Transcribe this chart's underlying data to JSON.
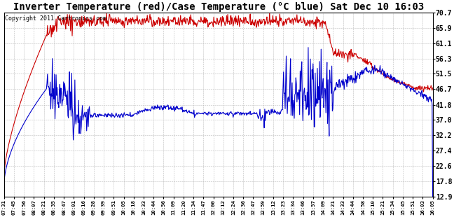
{
  "title": "Inverter Temperature (red)/Case Temperature (°C blue) Sat Dec 10 16:03",
  "copyright": "Copyright 2011 Cartronics.com",
  "yticks": [
    12.9,
    17.8,
    22.6,
    27.4,
    32.2,
    37.0,
    41.8,
    46.7,
    51.5,
    56.3,
    61.1,
    65.9,
    70.7
  ],
  "ymin": 12.9,
  "ymax": 70.7,
  "xtick_labels": [
    "07:31",
    "07:45",
    "07:56",
    "08:07",
    "08:21",
    "08:35",
    "08:47",
    "09:01",
    "09:16",
    "09:28",
    "09:39",
    "09:51",
    "10:05",
    "10:18",
    "10:33",
    "10:44",
    "10:56",
    "11:09",
    "11:20",
    "11:34",
    "11:47",
    "12:00",
    "12:12",
    "12:24",
    "12:36",
    "12:47",
    "12:59",
    "13:12",
    "13:23",
    "13:34",
    "13:46",
    "13:57",
    "14:09",
    "14:21",
    "14:33",
    "14:44",
    "14:58",
    "15:10",
    "15:21",
    "15:34",
    "15:45",
    "15:51",
    "16:03",
    "16:05"
  ],
  "red_color": "#cc0000",
  "blue_color": "#0000cc",
  "bg_color": "#ffffff",
  "grid_color": "#aaaaaa",
  "title_fontsize": 10,
  "copyright_fontsize": 6
}
